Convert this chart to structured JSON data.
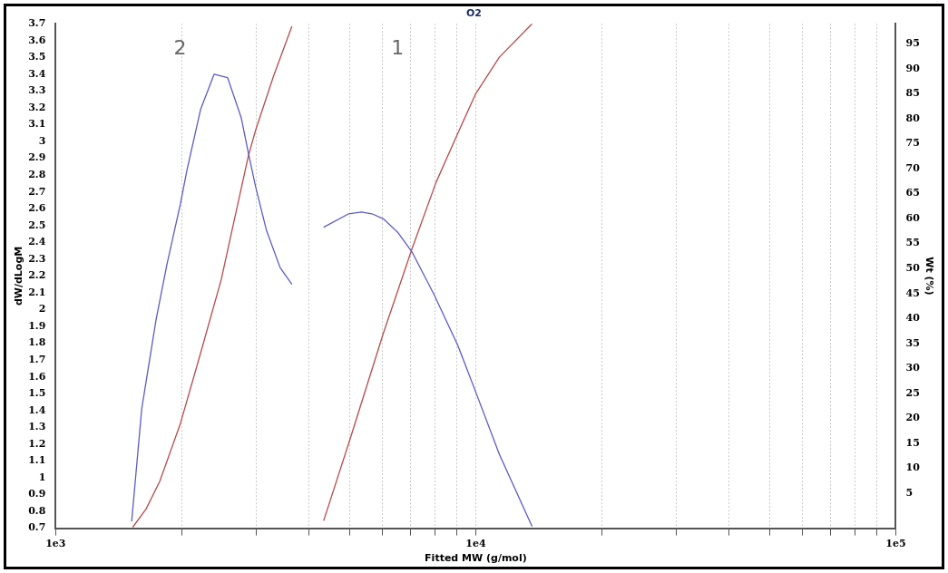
{
  "chart_data": {
    "type": "line",
    "title": "O2",
    "xlabel": "Fitted MW (g/mol)",
    "ylabel": "dW/dLogM",
    "y2label": "Wt (%)",
    "log": "x",
    "grid": "x",
    "legend": false,
    "marker": "none",
    "line_style": "solid",
    "xlim": [
      1000,
      100000
    ],
    "xticks": [
      {
        "value": 1000,
        "label": "1e3"
      },
      {
        "value": 2000,
        "label": null
      },
      {
        "value": 3000,
        "label": null
      },
      {
        "value": 4000,
        "label": null
      },
      {
        "value": 5000,
        "label": null
      },
      {
        "value": 6000,
        "label": null
      },
      {
        "value": 7000,
        "label": null
      },
      {
        "value": 8000,
        "label": null
      },
      {
        "value": 9000,
        "label": null
      },
      {
        "value": 10000,
        "label": "1e4"
      },
      {
        "value": 20000,
        "label": null
      },
      {
        "value": 30000,
        "label": null
      },
      {
        "value": 40000,
        "label": null
      },
      {
        "value": 50000,
        "label": null
      },
      {
        "value": 60000,
        "label": null
      },
      {
        "value": 70000,
        "label": null
      },
      {
        "value": 80000,
        "label": null
      },
      {
        "value": 90000,
        "label": null
      },
      {
        "value": 100000,
        "label": "1e5"
      }
    ],
    "ylim": [
      0.7,
      3.7
    ],
    "yticks": [
      0.7,
      0.8,
      0.9,
      1,
      1.1,
      1.2,
      1.3,
      1.4,
      1.5,
      1.6,
      1.7,
      1.8,
      1.9,
      2,
      2.1,
      2.2,
      2.3,
      2.4,
      2.5,
      2.6,
      2.7,
      2.8,
      2.9,
      3,
      3.1,
      3.2,
      3.3,
      3.4,
      3.5,
      3.6,
      3.7
    ],
    "y2lim": [
      -2,
      99
    ],
    "y2ticks": [
      5,
      10,
      15,
      20,
      25,
      30,
      35,
      40,
      45,
      50,
      55,
      60,
      65,
      70,
      75,
      80,
      85,
      90,
      95
    ],
    "series": [
      {
        "color": "#5b5bc8",
        "x": [
          1517,
          1603,
          1734,
          1841,
          1982,
          2054,
          2213,
          2384,
          2566,
          2766,
          2877,
          2993,
          3177,
          3422,
          3651
        ],
        "values": [
          0.74,
          1.41,
          1.94,
          2.27,
          2.63,
          2.83,
          3.19,
          3.4,
          3.38,
          3.14,
          2.93,
          2.73,
          2.47,
          2.25,
          2.15
        ]
      },
      {
        "color": "#b84a4a",
        "axis": "y2",
        "x": [
          1526,
          1643,
          1770,
          1982,
          2190,
          2477,
          2877,
          2993,
          3304,
          3651
        ],
        "values": [
          -1.8,
          1.9,
          7.4,
          19,
          31.7,
          47.7,
          72.6,
          77.7,
          88.6,
          98.5
        ]
      },
      {
        "color": "#5b5bc8",
        "x": [
          4345,
          4987,
          5340,
          5660,
          6025,
          6520,
          7063,
          7954,
          9055,
          10000,
          11380,
          13620
        ],
        "values": [
          2.49,
          2.57,
          2.58,
          2.57,
          2.54,
          2.46,
          2.34,
          2.09,
          1.79,
          1.51,
          1.14,
          0.71
        ]
      },
      {
        "color": "#b84a4a",
        "axis": "y2",
        "x": [
          4345,
          5042,
          6025,
          7063,
          8041,
          9055,
          10000,
          11380,
          13620
        ],
        "values": [
          -0.5,
          16.3,
          37,
          54.1,
          67.2,
          77,
          85,
          92.3,
          99
        ]
      }
    ],
    "annotations": [
      "2",
      "1"
    ]
  }
}
